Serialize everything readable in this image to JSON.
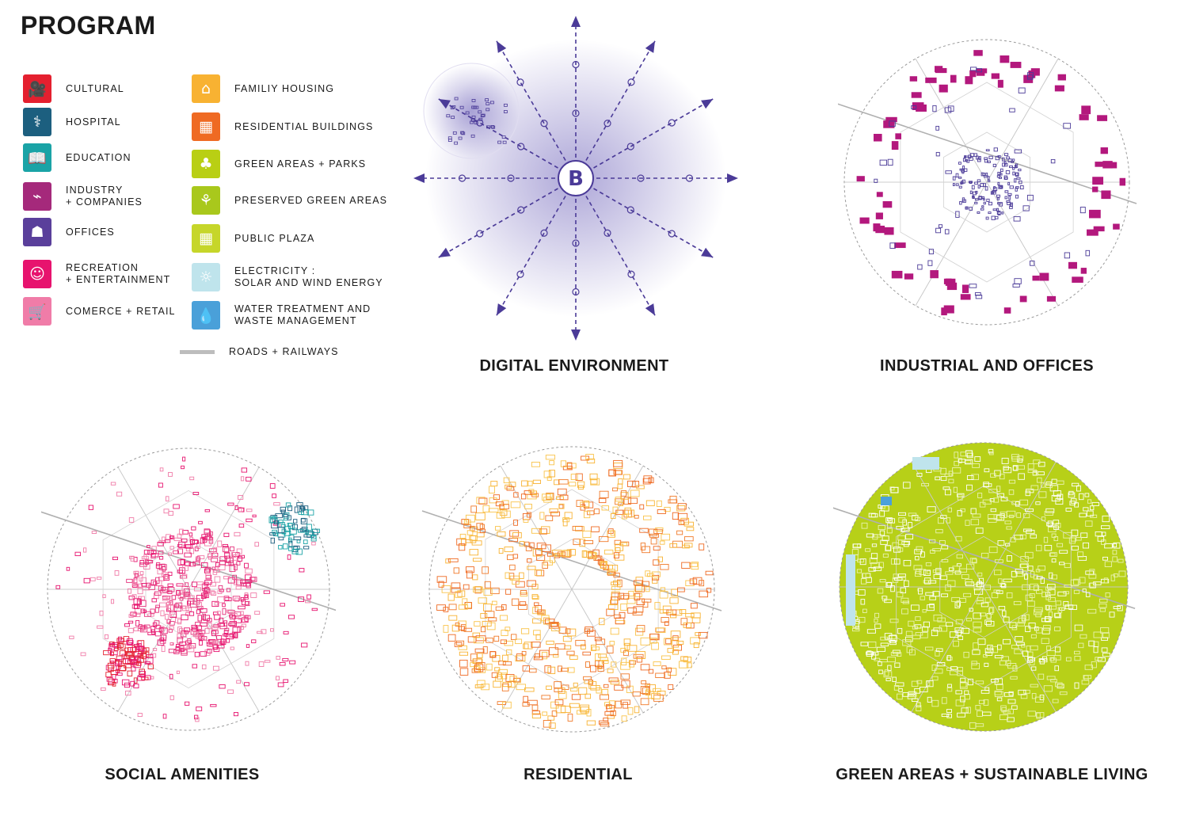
{
  "title": "PROGRAM",
  "legend": {
    "col1": [
      {
        "label": [
          "CULTURAL"
        ],
        "color": "#e4202f",
        "icon": "film-camera-icon",
        "glyph": "🎥"
      },
      {
        "label": [
          "HOSPITAL"
        ],
        "color": "#1c5f7f",
        "icon": "doctor-icon",
        "glyph": "⚕"
      },
      {
        "label": [
          "EDUCATION"
        ],
        "color": "#1aa3a6",
        "icon": "book-icon",
        "glyph": "📖"
      },
      {
        "label": [
          "INDUSTRY",
          "+ COMPANIES"
        ],
        "color": "#a5297b",
        "icon": "plug-icon",
        "glyph": "⌁"
      },
      {
        "label": [
          "OFFICES"
        ],
        "color": "#5a3f9b",
        "icon": "office-worker-icon",
        "glyph": "☗"
      },
      {
        "label": [
          "RECREATION",
          "+ ENTERTAINMENT"
        ],
        "color": "#e7136e",
        "icon": "people-icon",
        "glyph": "☺"
      },
      {
        "label": [
          "COMERCE + RETAIL"
        ],
        "color": "#f07ca8",
        "icon": "shopping-cart-icon",
        "glyph": "🛒"
      }
    ],
    "col2": [
      {
        "label": [
          "FAMILIY HOUSING"
        ],
        "color": "#f8b232",
        "icon": "house-icon",
        "glyph": "⌂"
      },
      {
        "label": [
          "RESIDENTIAL BUILDINGS"
        ],
        "color": "#ef6a23",
        "icon": "apartment-icon",
        "glyph": "▦"
      },
      {
        "label": [
          "GREEN AREAS + PARKS"
        ],
        "color": "#b9cf14",
        "icon": "tree-icon",
        "glyph": "♣"
      },
      {
        "label": [
          "PRESERVED GREEN AREAS"
        ],
        "color": "#a9c81c",
        "icon": "branch-icon",
        "glyph": "⚘"
      },
      {
        "label": [
          "PUBLIC PLAZA"
        ],
        "color": "#c6d62a",
        "icon": "grid-icon",
        "glyph": "▦"
      },
      {
        "label": [
          "ELECTRICITY :",
          "SOLAR AND WIND ENERGY"
        ],
        "color": "#bfe4ec",
        "icon": "sun-icon",
        "glyph": "☼"
      },
      {
        "label": [
          "WATER TREATMENT AND",
          "WASTE MANAGEMENT"
        ],
        "color": "#4aa0d9",
        "icon": "water-drop-icon",
        "glyph": "💧"
      }
    ],
    "roads": "ROADS + RAILWAYS"
  },
  "panels": {
    "digital": {
      "caption": "DIGITAL ENVIRONMENT",
      "color": "#4b3b98",
      "center_symbol": "B"
    },
    "industrial": {
      "caption": "INDUSTRIAL AND OFFICES",
      "color": "#b3187d"
    },
    "social": {
      "caption": "SOCIAL AMENITIES",
      "color": "#e5327d"
    },
    "residential": {
      "caption": "RESIDENTIAL",
      "color": "#f07a2a"
    },
    "green": {
      "caption": "GREEN AREAS + SUSTAINABLE LIVING",
      "color": "#b7d018"
    }
  }
}
